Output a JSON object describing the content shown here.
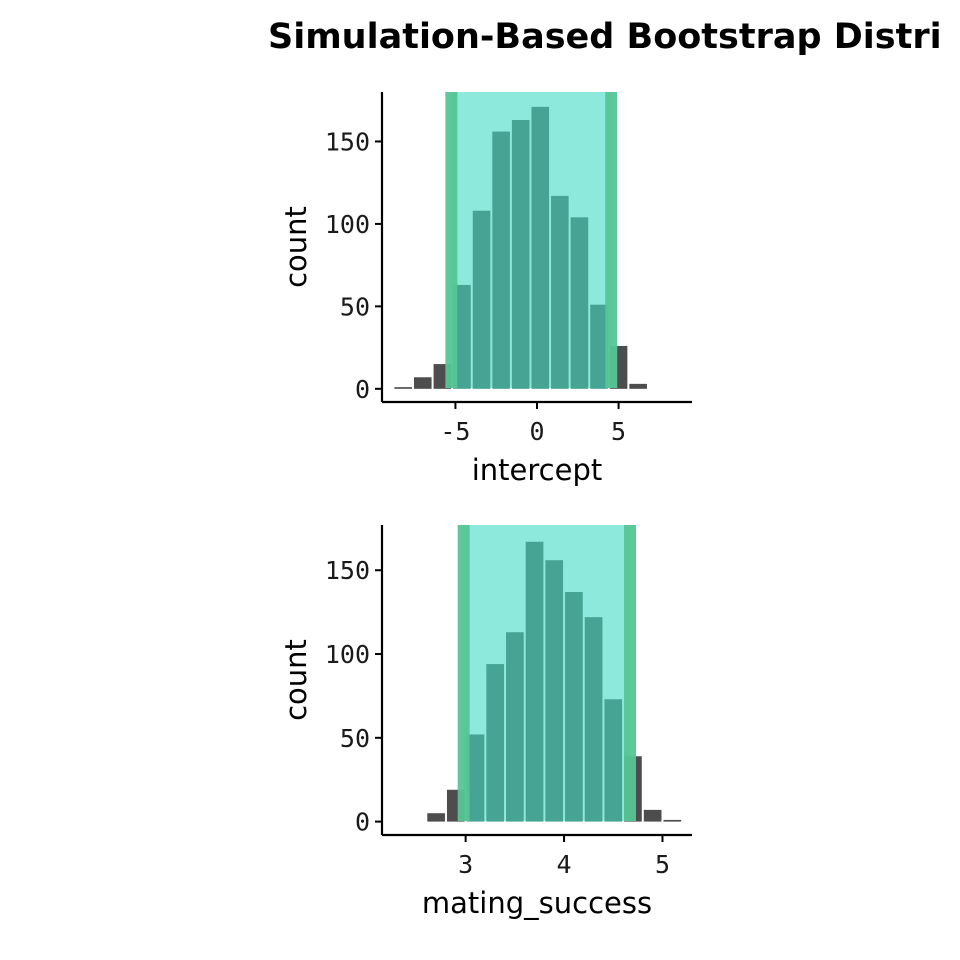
{
  "title": "Simulation-Based Bootstrap Distri",
  "colors": {
    "bar": "#4d4d4d",
    "ci_fill": "#8de9dc",
    "ci_edge": "#55c595",
    "bar_in_ci": "#45a493"
  },
  "chart_data": [
    {
      "type": "bar",
      "panel": "intercept",
      "xlabel": "intercept",
      "ylabel": "count",
      "xlim": [
        -9.5,
        9.5
      ],
      "ylim": [
        -8,
        180
      ],
      "xticks": [
        -5,
        0,
        5
      ],
      "yticks": [
        0,
        50,
        100,
        150
      ],
      "bin_width": 1.2,
      "bins": [
        {
          "x": -8.2,
          "count": 1
        },
        {
          "x": -7.0,
          "count": 7
        },
        {
          "x": -5.8,
          "count": 15
        },
        {
          "x": -4.6,
          "count": 63
        },
        {
          "x": -3.4,
          "count": 108
        },
        {
          "x": -2.2,
          "count": 156
        },
        {
          "x": -1.0,
          "count": 163
        },
        {
          "x": 0.2,
          "count": 171
        },
        {
          "x": 1.4,
          "count": 117
        },
        {
          "x": 2.6,
          "count": 104
        },
        {
          "x": 3.8,
          "count": 51
        },
        {
          "x": 5.0,
          "count": 26
        },
        {
          "x": 6.2,
          "count": 3
        }
      ],
      "ci": [
        -5.25,
        4.55
      ]
    },
    {
      "type": "bar",
      "panel": "mating_success",
      "xlabel": "mating_success",
      "ylabel": "count",
      "xlim": [
        2.15,
        5.3
      ],
      "ylim": [
        -8,
        177
      ],
      "xticks": [
        3,
        4,
        5
      ],
      "yticks": [
        0,
        50,
        100,
        150
      ],
      "bin_width": 0.2,
      "bins": [
        {
          "x": 2.7,
          "count": 5
        },
        {
          "x": 2.9,
          "count": 19
        },
        {
          "x": 3.1,
          "count": 52
        },
        {
          "x": 3.3,
          "count": 94
        },
        {
          "x": 3.5,
          "count": 113
        },
        {
          "x": 3.7,
          "count": 167
        },
        {
          "x": 3.9,
          "count": 156
        },
        {
          "x": 4.1,
          "count": 137
        },
        {
          "x": 4.3,
          "count": 122
        },
        {
          "x": 4.5,
          "count": 73
        },
        {
          "x": 4.7,
          "count": 39
        },
        {
          "x": 4.9,
          "count": 7
        },
        {
          "x": 5.1,
          "count": 1
        }
      ],
      "ci": [
        2.98,
        4.67
      ]
    }
  ]
}
